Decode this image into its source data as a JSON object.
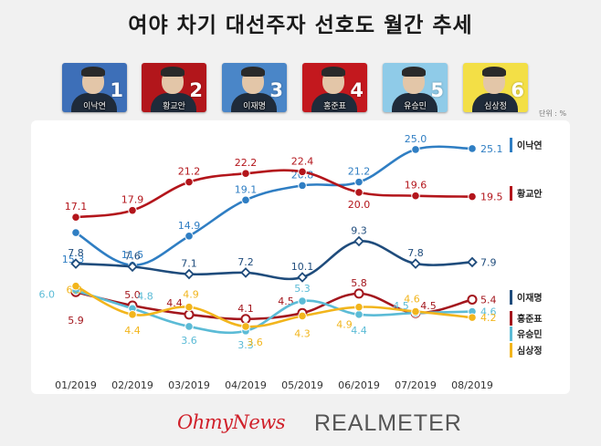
{
  "title": "여야 차기 대선주자 선호도 월간 추세",
  "unit": "단위 : %",
  "portraits": [
    {
      "name": "이낙연",
      "rank": "1",
      "bg": "#3d6fb8"
    },
    {
      "name": "황교안",
      "rank": "2",
      "bg": "#b2161b"
    },
    {
      "name": "이재명",
      "rank": "3",
      "bg": "#4a86c8"
    },
    {
      "name": "홍준표",
      "rank": "4",
      "bg": "#c3181e"
    },
    {
      "name": "유승민",
      "rank": "5",
      "bg": "#8fcbe8"
    },
    {
      "name": "심상정",
      "rank": "6",
      "bg": "#f3df46"
    }
  ],
  "chart_data": {
    "type": "line",
    "title": "여야 차기 대선주자 선호도 월간 추세",
    "categories": [
      "01/2019",
      "02/2019",
      "03/2019",
      "04/2019",
      "05/2019",
      "06/2019",
      "07/2019",
      "08/2019"
    ],
    "ylabel": "",
    "unit": "%",
    "grid": false,
    "legend": "right",
    "series": [
      {
        "name": "이낙연",
        "color": "#2f7ec3",
        "values": [
          15.3,
          11.5,
          14.9,
          19.1,
          20.8,
          21.2,
          25.0,
          25.1
        ],
        "labels": [
          "15.3",
          "11.5",
          "14.9",
          "19.1",
          "20.8",
          "21.2",
          "25.0",
          "25.1"
        ]
      },
      {
        "name": "황교안",
        "color": "#b3151b",
        "values": [
          17.1,
          17.9,
          21.2,
          22.2,
          22.4,
          20.0,
          19.6,
          19.5
        ],
        "labels": [
          "17.1",
          "17.9",
          "21.2",
          "22.2",
          "22.4",
          "20.0",
          "19.6",
          "19.5"
        ]
      },
      {
        "name": "이재명",
        "color": "#1f4c7c",
        "values": [
          7.8,
          7.6,
          7.1,
          7.2,
          10.1,
          9.3,
          7.8,
          7.9
        ],
        "labels": [
          "7.8",
          "7.6",
          "7.1",
          "7.2",
          "10.1",
          "9.3",
          "7.8",
          "7.9"
        ]
      },
      {
        "name": "홍준표",
        "color": "#a3161d",
        "values": [
          5.9,
          5.0,
          4.4,
          4.1,
          4.5,
          5.8,
          4.5,
          5.4
        ],
        "labels": [
          "5.9",
          "5.0",
          "4.4",
          "4.1",
          "4.5",
          "5.8",
          "4.5",
          "5.4"
        ]
      },
      {
        "name": "유승민",
        "color": "#5bbbd6",
        "values": [
          6.0,
          4.8,
          3.6,
          3.3,
          5.3,
          4.4,
          4.5,
          4.6
        ],
        "labels": [
          "6.0",
          "4.8",
          "3.6",
          "3.3",
          "5.3",
          "4.4",
          "4.5",
          "4.6"
        ]
      },
      {
        "name": "심상정",
        "color": "#f2b51c",
        "values": [
          6.3,
          4.4,
          4.9,
          3.6,
          4.3,
          4.9,
          4.6,
          4.2
        ],
        "labels": [
          "6.3",
          "4.4",
          "4.9",
          "3.6",
          "4.3",
          "4.9",
          "4.6",
          "4.2"
        ]
      }
    ]
  },
  "logos": {
    "left": "OhmyNews",
    "right": "REALMETER"
  }
}
